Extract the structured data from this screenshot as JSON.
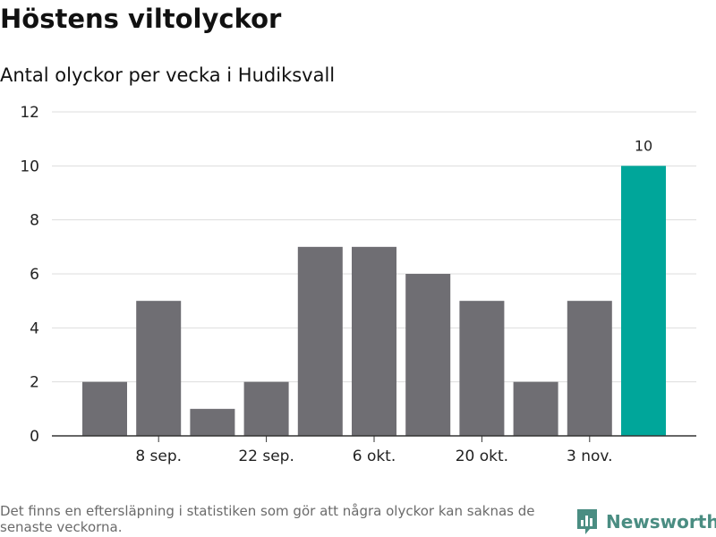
{
  "header": {
    "title": "Höstens viltolyckor",
    "subtitle": "Antal olyckor per vecka i Hudiksvall"
  },
  "footer": {
    "note": "Det finns en eftersläpning i statistiken som gör att några olyckor kan saknas de senaste veckorna.",
    "brand": "Newsworthy"
  },
  "colors": {
    "bar": "#6f6e73",
    "highlight": "#00a69a",
    "grid": "#dddddd",
    "axis": "#333333",
    "brand": "#4a8d82"
  },
  "chart_data": {
    "type": "bar",
    "title": "Höstens viltolyckor",
    "subtitle": "Antal olyckor per vecka i Hudiksvall",
    "xlabel": "",
    "ylabel": "",
    "values": [
      2,
      5,
      1,
      2,
      7,
      7,
      6,
      5,
      2,
      5,
      10
    ],
    "highlight_index": 10,
    "data_labels": [
      {
        "index": 10,
        "text": "10"
      }
    ],
    "x_ticks": [
      {
        "after_bar": 1,
        "label": "8 sep."
      },
      {
        "after_bar": 3,
        "label": "22 sep."
      },
      {
        "after_bar": 5,
        "label": "6 okt."
      },
      {
        "after_bar": 7,
        "label": "20 okt."
      },
      {
        "after_bar": 9,
        "label": "3 nov."
      }
    ],
    "ylim": [
      0,
      12
    ],
    "y_ticks": [
      0,
      2,
      4,
      6,
      8,
      10,
      12
    ],
    "grid": true,
    "legend": "none"
  }
}
